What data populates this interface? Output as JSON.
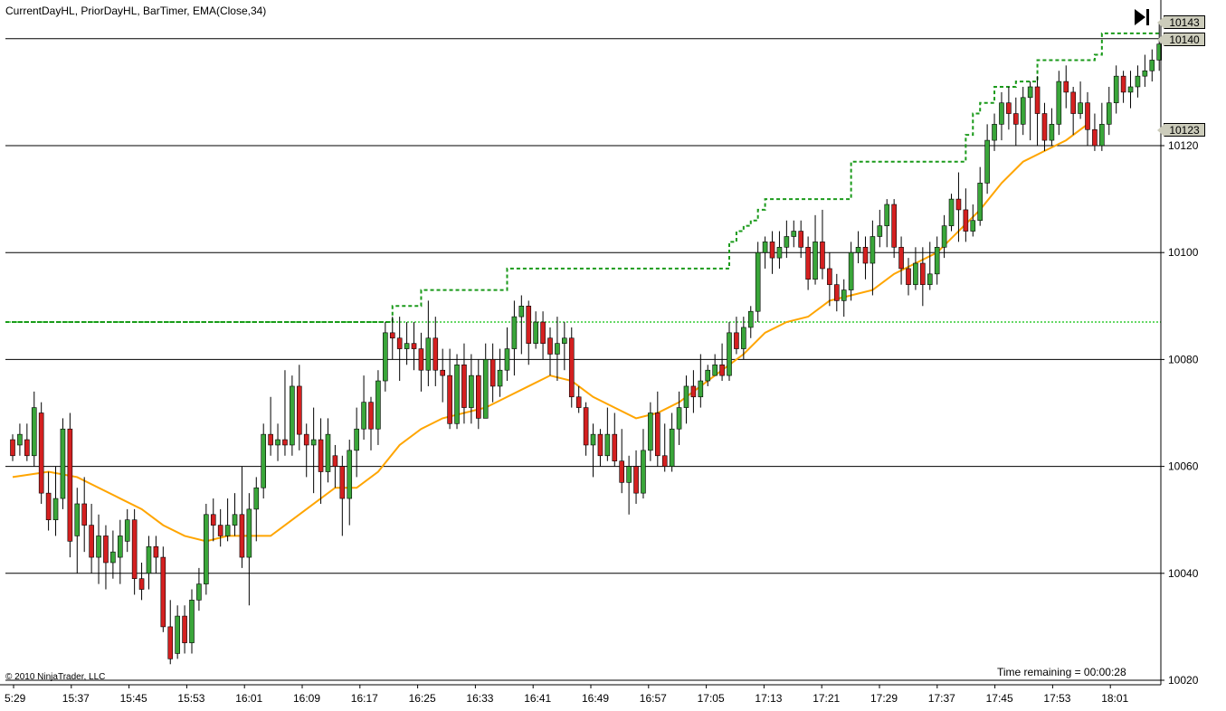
{
  "header": {
    "indicators": "CurrentDayHL, PriorDayHL, BarTimer, EMA(Close,34)",
    "copyright": "© 2010 NinjaTrader, LLC",
    "time_remaining": "Time remaining = 00:00:28"
  },
  "toolbar": {
    "scroll_end_icon": "skip-to-end-icon"
  },
  "price_tags": [
    "10143",
    "10140",
    "10123"
  ],
  "colors": {
    "up_candle": "#3aa63a",
    "down_candle": "#d42020",
    "ema": "#ffa500",
    "current_day_high": "#1a9a1a",
    "prior_day_level": "#33cc33",
    "gridline": "#000000",
    "price_tag_bg": "#ccccbb"
  },
  "chart_data": {
    "type": "candlestick",
    "x_tick_labels": [
      "5:29",
      "15:37",
      "15:45",
      "15:53",
      "16:01",
      "16:09",
      "16:17",
      "16:25",
      "16:33",
      "16:41",
      "16:49",
      "16:57",
      "17:05",
      "17:13",
      "17:21",
      "17:29",
      "17:37",
      "17:45",
      "17:53",
      "18:01"
    ],
    "y_tick_labels": [
      "10020",
      "10040",
      "10060",
      "10080",
      "10100",
      "10120"
    ],
    "ylim": [
      10020,
      10146
    ],
    "grid": true,
    "prior_day_level": 10087,
    "ema_label": "EMA(Close,34)",
    "ema_points": [
      [
        0,
        10058
      ],
      [
        5,
        10059
      ],
      [
        9,
        10058
      ],
      [
        15,
        10054
      ],
      [
        18,
        10052
      ],
      [
        21,
        10049
      ],
      [
        24,
        10047
      ],
      [
        27,
        10046
      ],
      [
        30,
        10047
      ],
      [
        33,
        10047
      ],
      [
        36,
        10047
      ],
      [
        39,
        10050
      ],
      [
        42,
        10053
      ],
      [
        45,
        10056
      ],
      [
        48,
        10056
      ],
      [
        51,
        10059
      ],
      [
        54,
        10064
      ],
      [
        57,
        10067
      ],
      [
        60,
        10069
      ],
      [
        63,
        10070
      ],
      [
        66,
        10071
      ],
      [
        69,
        10073
      ],
      [
        72,
        10075
      ],
      [
        75,
        10077
      ],
      [
        78,
        10076
      ],
      [
        81,
        10073
      ],
      [
        84,
        10071
      ],
      [
        87,
        10069
      ],
      [
        90,
        10070
      ],
      [
        93,
        10072
      ],
      [
        96,
        10075
      ],
      [
        99,
        10078
      ],
      [
        102,
        10081
      ],
      [
        105,
        10085
      ],
      [
        108,
        10087
      ],
      [
        111,
        10088
      ],
      [
        114,
        10091
      ],
      [
        117,
        10092
      ],
      [
        120,
        10093
      ],
      [
        123,
        10096
      ],
      [
        126,
        10098
      ],
      [
        129,
        10100
      ],
      [
        132,
        10104
      ],
      [
        135,
        10108
      ],
      [
        138,
        10113
      ],
      [
        141,
        10117
      ],
      [
        144,
        10119
      ],
      [
        147,
        10121
      ],
      [
        150,
        10124
      ]
    ],
    "current_day_high_steps": [
      [
        0,
        10087
      ],
      [
        52,
        10087
      ],
      [
        53,
        10090
      ],
      [
        57,
        10093
      ],
      [
        69,
        10097
      ],
      [
        99,
        10097
      ],
      [
        100,
        10102
      ],
      [
        101,
        10104
      ],
      [
        102,
        10105
      ],
      [
        103,
        10106
      ],
      [
        104,
        10108
      ],
      [
        105,
        10110
      ],
      [
        116,
        10110
      ],
      [
        117,
        10117
      ],
      [
        132,
        10117
      ],
      [
        133,
        10122
      ],
      [
        134,
        10126
      ],
      [
        135,
        10128
      ],
      [
        137,
        10131
      ],
      [
        140,
        10132
      ],
      [
        143,
        10136
      ],
      [
        150,
        10136
      ],
      [
        151,
        10137
      ],
      [
        152,
        10141
      ]
    ],
    "candles": [
      [
        0,
        10065,
        10062,
        10066,
        10061
      ],
      [
        1,
        10064,
        10066,
        10068,
        10062
      ],
      [
        2,
        10065,
        10062,
        10068,
        10061
      ],
      [
        3,
        10062,
        10071,
        10074,
        10060
      ],
      [
        4,
        10070,
        10055,
        10072,
        10053
      ],
      [
        5,
        10055,
        10050,
        10059,
        10048
      ],
      [
        6,
        10050,
        10054,
        10060,
        10047
      ],
      [
        7,
        10054,
        10067,
        10069,
        10052
      ],
      [
        8,
        10067,
        10046,
        10070,
        10043
      ],
      [
        9,
        10047,
        10053,
        10056,
        10040
      ],
      [
        10,
        10053,
        10049,
        10058,
        10044
      ],
      [
        11,
        10049,
        10043,
        10053,
        10040
      ],
      [
        12,
        10043,
        10047,
        10051,
        10038
      ],
      [
        13,
        10047,
        10042,
        10049,
        10037
      ],
      [
        14,
        10042,
        10044,
        10048,
        10039
      ],
      [
        15,
        10043,
        10047,
        10050,
        10038
      ],
      [
        16,
        10046,
        10050,
        10052,
        10044
      ],
      [
        17,
        10050,
        10039,
        10052,
        10036
      ],
      [
        18,
        10039,
        10037,
        10042,
        10035
      ],
      [
        19,
        10040,
        10045,
        10047,
        10037
      ],
      [
        20,
        10045,
        10043,
        10047,
        10040
      ],
      [
        21,
        10043,
        10030,
        10045,
        10029
      ],
      [
        22,
        10030,
        10024,
        10035,
        10023
      ],
      [
        23,
        10025,
        10032,
        10034,
        10024
      ],
      [
        24,
        10032,
        10027,
        10034,
        10025
      ],
      [
        25,
        10027,
        10035,
        10037,
        10025
      ],
      [
        26,
        10035,
        10038,
        10041,
        10033
      ],
      [
        27,
        10038,
        10051,
        10053,
        10036
      ],
      [
        28,
        10051,
        10049,
        10054,
        10046
      ],
      [
        29,
        10049,
        10047,
        10052,
        10045
      ],
      [
        30,
        10047,
        10049,
        10054,
        10046
      ],
      [
        31,
        10049,
        10051,
        10055,
        10047
      ],
      [
        32,
        10051,
        10043,
        10060,
        10041
      ],
      [
        33,
        10043,
        10052,
        10055,
        10034
      ],
      [
        34,
        10052,
        10056,
        10058,
        10046
      ],
      [
        35,
        10056,
        10066,
        10068,
        10054
      ],
      [
        36,
        10066,
        10064,
        10073,
        10062
      ],
      [
        37,
        10064,
        10065,
        10068,
        10061
      ],
      [
        38,
        10065,
        10064,
        10078,
        10062
      ],
      [
        39,
        10064,
        10075,
        10077,
        10062
      ],
      [
        40,
        10075,
        10066,
        10079,
        10063
      ],
      [
        41,
        10066,
        10064,
        10068,
        10058
      ],
      [
        42,
        10064,
        10065,
        10071,
        10055
      ],
      [
        43,
        10065,
        10059,
        10069,
        10053
      ],
      [
        44,
        10059,
        10066,
        10069,
        10057
      ],
      [
        45,
        10062,
        10060,
        10064,
        10056
      ],
      [
        46,
        10060,
        10054,
        10062,
        10047
      ],
      [
        47,
        10054,
        10063,
        10065,
        10049
      ],
      [
        48,
        10063,
        10067,
        10071,
        10058
      ],
      [
        49,
        10067,
        10072,
        10077,
        10065
      ],
      [
        50,
        10072,
        10067,
        10073,
        10063
      ],
      [
        51,
        10067,
        10076,
        10078,
        10064
      ],
      [
        52,
        10076,
        10085,
        10087,
        10074
      ],
      [
        53,
        10085,
        10084,
        10088,
        10080
      ],
      [
        54,
        10084,
        10082,
        10088,
        10076
      ],
      [
        55,
        10082,
        10083,
        10087,
        10079
      ],
      [
        56,
        10083,
        10082,
        10087,
        10078
      ],
      [
        57,
        10082,
        10078,
        10085,
        10074
      ],
      [
        58,
        10078,
        10084,
        10091,
        10075
      ],
      [
        59,
        10084,
        10078,
        10088,
        10075
      ],
      [
        60,
        10078,
        10077,
        10082,
        10072
      ],
      [
        61,
        10077,
        10068,
        10082,
        10067
      ],
      [
        62,
        10068,
        10079,
        10081,
        10067
      ],
      [
        63,
        10079,
        10071,
        10083,
        10068
      ],
      [
        64,
        10071,
        10077,
        10081,
        10068
      ],
      [
        65,
        10077,
        10069,
        10080,
        10067
      ],
      [
        66,
        10069,
        10080,
        10083,
        10071
      ],
      [
        67,
        10080,
        10075,
        10083,
        10072
      ],
      [
        68,
        10075,
        10078,
        10082,
        10073
      ],
      [
        69,
        10078,
        10082,
        10086,
        10076
      ],
      [
        70,
        10082,
        10088,
        10091,
        10077
      ],
      [
        71,
        10088,
        10090,
        10092,
        10081
      ],
      [
        72,
        10090,
        10083,
        10091,
        10079
      ],
      [
        73,
        10083,
        10087,
        10089,
        10082
      ],
      [
        74,
        10087,
        10083,
        10089,
        10080
      ],
      [
        75,
        10084,
        10081,
        10086,
        10077
      ],
      [
        76,
        10081,
        10083,
        10088,
        10076
      ],
      [
        77,
        10083,
        10084,
        10087,
        10078
      ],
      [
        78,
        10084,
        10073,
        10086,
        10071
      ],
      [
        79,
        10073,
        10071,
        10075,
        10070
      ],
      [
        80,
        10071,
        10064,
        10072,
        10062
      ],
      [
        81,
        10064,
        10066,
        10068,
        10058
      ],
      [
        82,
        10066,
        10062,
        10067,
        10060
      ],
      [
        83,
        10062,
        10066,
        10071,
        10061
      ],
      [
        84,
        10066,
        10061,
        10070,
        10060
      ],
      [
        85,
        10061,
        10057,
        10067,
        10055
      ],
      [
        86,
        10057,
        10060,
        10062,
        10051
      ],
      [
        87,
        10060,
        10055,
        10063,
        10053
      ],
      [
        88,
        10055,
        10063,
        10067,
        10054
      ],
      [
        89,
        10063,
        10070,
        10072,
        10061
      ],
      [
        90,
        10070,
        10062,
        10074,
        10060
      ],
      [
        91,
        10062,
        10060,
        10068,
        10059
      ],
      [
        92,
        10060,
        10067,
        10070,
        10059
      ],
      [
        93,
        10067,
        10071,
        10074,
        10064
      ],
      [
        94,
        10071,
        10075,
        10077,
        10068
      ],
      [
        95,
        10075,
        10073,
        10078,
        10070
      ],
      [
        96,
        10073,
        10076,
        10081,
        10071
      ],
      [
        97,
        10076,
        10078,
        10079,
        10075
      ],
      [
        98,
        10077,
        10079,
        10081,
        10077
      ],
      [
        99,
        10079,
        10077,
        10083,
        10076
      ],
      [
        100,
        10077,
        10085,
        10087,
        10076
      ],
      [
        101,
        10085,
        10082,
        10088,
        10081
      ],
      [
        102,
        10082,
        10086,
        10088,
        10080
      ],
      [
        103,
        10086,
        10089,
        10090,
        10084
      ],
      [
        104,
        10089,
        10100,
        10102,
        10087
      ],
      [
        105,
        10100,
        10102,
        10103,
        10097
      ],
      [
        106,
        10102,
        10099,
        10104,
        10096
      ],
      [
        107,
        10099,
        10101,
        10104,
        10097
      ],
      [
        108,
        10101,
        10103,
        10106,
        10099
      ],
      [
        109,
        10103,
        10104,
        10106,
        10101
      ],
      [
        110,
        10104,
        10101,
        10106,
        10099
      ],
      [
        111,
        10101,
        10095,
        10103,
        10093
      ],
      [
        112,
        10095,
        10102,
        10107,
        10094
      ],
      [
        113,
        10102,
        10097,
        10108,
        10095
      ],
      [
        114,
        10097,
        10094,
        10100,
        10090
      ],
      [
        115,
        10094,
        10091,
        10096,
        10089
      ],
      [
        116,
        10091,
        10093,
        10095,
        10088
      ],
      [
        117,
        10093,
        10100,
        10102,
        10091
      ],
      [
        118,
        10100,
        10101,
        10104,
        10098
      ],
      [
        119,
        10101,
        10098,
        10103,
        10095
      ],
      [
        120,
        10098,
        10103,
        10106,
        10092
      ],
      [
        121,
        10103,
        10105,
        10108,
        10101
      ],
      [
        122,
        10105,
        10109,
        10110,
        10101
      ],
      [
        123,
        10109,
        10101,
        10110,
        10099
      ],
      [
        124,
        10101,
        10097,
        10103,
        10094
      ],
      [
        125,
        10097,
        10094,
        10099,
        10092
      ],
      [
        126,
        10094,
        10098,
        10101,
        10093
      ],
      [
        127,
        10098,
        10094,
        10101,
        10090
      ],
      [
        128,
        10094,
        10096,
        10102,
        10093
      ],
      [
        129,
        10096,
        10101,
        10103,
        10094
      ],
      [
        130,
        10101,
        10105,
        10107,
        10099
      ],
      [
        131,
        10105,
        10110,
        10111,
        10104
      ],
      [
        132,
        10110,
        10108,
        10115,
        10102
      ],
      [
        133,
        10108,
        10104,
        10112,
        10102
      ],
      [
        134,
        10104,
        10106,
        10109,
        10103
      ],
      [
        135,
        10106,
        10113,
        10116,
        10105
      ],
      [
        136,
        10113,
        10121,
        10124,
        10111
      ],
      [
        137,
        10121,
        10124,
        10126,
        10119
      ],
      [
        138,
        10124,
        10128,
        10130,
        10121
      ],
      [
        139,
        10128,
        10126,
        10131,
        10123
      ],
      [
        140,
        10126,
        10124,
        10129,
        10120
      ],
      [
        141,
        10124,
        10129,
        10131,
        10122
      ],
      [
        142,
        10129,
        10131,
        10132,
        10121
      ],
      [
        143,
        10131,
        10126,
        10133,
        10120
      ],
      [
        144,
        10126,
        10121,
        10128,
        10119
      ],
      [
        145,
        10121,
        10124,
        10127,
        10120
      ],
      [
        146,
        10124,
        10132,
        10134,
        10122
      ],
      [
        147,
        10132,
        10130,
        10135,
        10127
      ],
      [
        148,
        10130,
        10126,
        10131,
        10122
      ],
      [
        149,
        10126,
        10128,
        10132,
        10125
      ],
      [
        150,
        10128,
        10123,
        10130,
        10120
      ],
      [
        151,
        10123,
        10120,
        10126,
        10119
      ],
      [
        152,
        10120,
        10124,
        10128,
        10119
      ],
      [
        153,
        10124,
        10128,
        10131,
        10122
      ],
      [
        154,
        10128,
        10133,
        10135,
        10126
      ],
      [
        155,
        10133,
        10130,
        10134,
        10128
      ],
      [
        156,
        10130,
        10131,
        10134,
        10127
      ],
      [
        157,
        10131,
        10133,
        10135,
        10129
      ],
      [
        158,
        10133,
        10134,
        10137,
        10131
      ],
      [
        159,
        10134,
        10136,
        10138,
        10132
      ],
      [
        160,
        10136,
        10139,
        10143,
        10134
      ]
    ]
  }
}
